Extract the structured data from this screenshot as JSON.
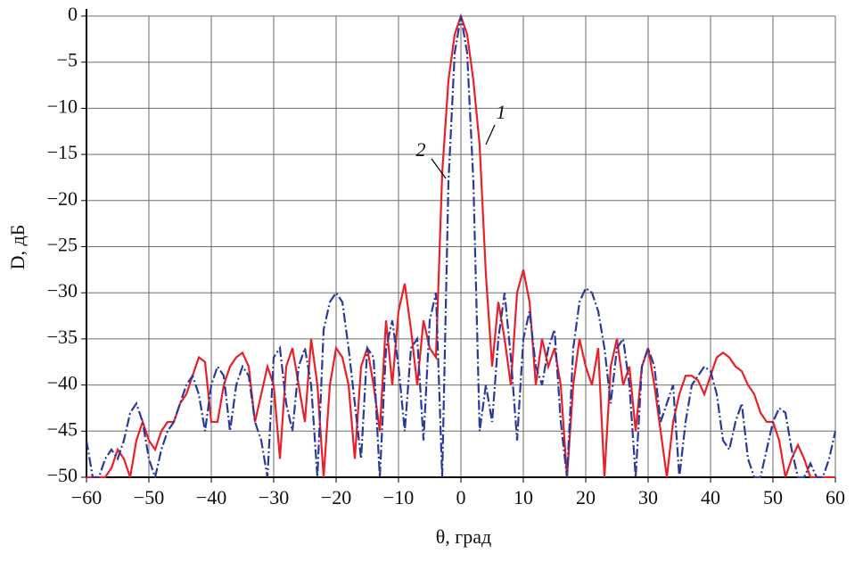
{
  "chart_data": {
    "type": "line",
    "x_label": "θ, град",
    "y_label": "D, дБ",
    "x": [
      -60,
      -59,
      -58,
      -57,
      -56,
      -55,
      -54,
      -53,
      -52,
      -51,
      -50,
      -49,
      -48,
      -47,
      -46,
      -45,
      -44,
      -43,
      -42,
      -41,
      -40,
      -39,
      -38,
      -37,
      -36,
      -35,
      -34,
      -33,
      -32,
      -31,
      -30,
      -29,
      -28,
      -27,
      -26,
      -25,
      -24,
      -23,
      -22,
      -21,
      -20,
      -19,
      -18,
      -17,
      -16,
      -15,
      -14,
      -13,
      -12,
      -11,
      -10,
      -9,
      -8,
      -7,
      -6,
      -5,
      -4,
      -3,
      -2,
      -1,
      0,
      1,
      2,
      3,
      4,
      5,
      6,
      7,
      8,
      9,
      10,
      11,
      12,
      13,
      14,
      15,
      16,
      17,
      18,
      19,
      20,
      21,
      22,
      23,
      24,
      25,
      26,
      27,
      28,
      29,
      30,
      31,
      32,
      33,
      34,
      35,
      36,
      37,
      38,
      39,
      40,
      41,
      42,
      43,
      44,
      45,
      46,
      47,
      48,
      49,
      50,
      51,
      52,
      53,
      54,
      55,
      56,
      57,
      58,
      59,
      60
    ],
    "series": [
      {
        "name": "1",
        "color": "#e8202a",
        "dash": "solid",
        "values": [
          -50,
          -50,
          -50,
          -50,
          -49,
          -47,
          -48,
          -50,
          -46,
          -44,
          -46,
          -47,
          -45,
          -44,
          -44,
          -42,
          -41,
          -39,
          -37,
          -37.5,
          -44,
          -44,
          -40,
          -38,
          -37,
          -36.5,
          -38,
          -44,
          -41,
          -38,
          -40,
          -48,
          -38,
          -36,
          -40,
          -44,
          -35,
          -40,
          -50,
          -40,
          -36,
          -37,
          -40,
          -48,
          -38,
          -36,
          -40,
          -45,
          -33,
          -40,
          -32,
          -29,
          -34,
          -40,
          -33,
          -36,
          -37,
          -17,
          -7,
          -2,
          0,
          -2,
          -7,
          -14,
          -28,
          -38,
          -31,
          -35,
          -40,
          -30,
          -27.5,
          -31,
          -40,
          -35,
          -38,
          -36,
          -40,
          -50,
          -40,
          -35,
          -38,
          -40,
          -36,
          -50,
          -38,
          -35,
          -40,
          -38,
          -45,
          -38,
          -36,
          -40,
          -45,
          -50,
          -44,
          -41,
          -39,
          -39,
          -39.5,
          -41,
          -39,
          -37,
          -36.5,
          -37,
          -38,
          -38.5,
          -40,
          -41,
          -43,
          -44,
          -44,
          -46,
          -50,
          -48,
          -46.5,
          -48,
          -50,
          -50,
          -50,
          -50,
          -50
        ]
      },
      {
        "name": "2",
        "color": "#2a3a9a",
        "dash": "dashdot",
        "values": [
          -46,
          -50,
          -50,
          -48,
          -47,
          -48,
          -46,
          -43,
          -42,
          -44,
          -48,
          -50,
          -47,
          -45,
          -44,
          -42,
          -40,
          -39,
          -41,
          -45,
          -40,
          -38,
          -39,
          -45,
          -40,
          -38,
          -39,
          -44,
          -46,
          -50,
          -37,
          -36,
          -42,
          -45,
          -38,
          -36,
          -40,
          -50,
          -34,
          -31,
          -30,
          -31,
          -36,
          -42,
          -48,
          -36,
          -37,
          -50,
          -36,
          -33,
          -38,
          -45,
          -36,
          -35,
          -46,
          -33,
          -30,
          -50,
          -18,
          -4,
          0,
          -4,
          -18,
          -45,
          -40,
          -44,
          -35,
          -30,
          -37,
          -46,
          -35,
          -32,
          -38,
          -40,
          -36,
          -34,
          -44,
          -50,
          -36,
          -31,
          -29.5,
          -30,
          -32,
          -36,
          -42,
          -36,
          -35,
          -40,
          -50,
          -38,
          -36,
          -38,
          -44,
          -42,
          -40,
          -50,
          -44,
          -40,
          -39,
          -38,
          -38.5,
          -41,
          -46,
          -47,
          -44,
          -42,
          -48,
          -50,
          -50,
          -47,
          -44,
          -42.5,
          -43,
          -47,
          -50,
          -50,
          -48.5,
          -50,
          -50,
          -48,
          -45
        ]
      }
    ],
    "xlim": [
      -60,
      60
    ],
    "ylim": [
      -50,
      0
    ],
    "xticks": [
      {
        "value": -60,
        "label": "−60"
      },
      {
        "value": -50,
        "label": "−50"
      },
      {
        "value": -40,
        "label": "−40"
      },
      {
        "value": -30,
        "label": "−30"
      },
      {
        "value": -20,
        "label": "−20"
      },
      {
        "value": -10,
        "label": "−10"
      },
      0,
      10,
      20,
      30,
      40,
      50,
      60
    ],
    "yticks": [
      0,
      {
        "value": -5,
        "label": "−5"
      },
      {
        "value": -10,
        "label": "−10"
      },
      {
        "value": -15,
        "label": "−15"
      },
      {
        "value": -20,
        "label": "−20"
      },
      {
        "value": -25,
        "label": "−25"
      },
      {
        "value": -30,
        "label": "−30"
      },
      {
        "value": -35,
        "label": "−35"
      },
      {
        "value": -40,
        "label": "−40"
      },
      {
        "value": -45,
        "label": "−45"
      },
      {
        "value": -50,
        "label": "−50"
      }
    ],
    "grid": true
  }
}
